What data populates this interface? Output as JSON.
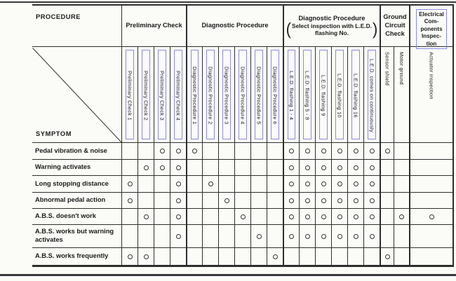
{
  "page": {
    "title_procedure": "PROCEDURE",
    "title_symptom": "SYMPTOM"
  },
  "groups": {
    "preliminary": {
      "label": "Preliminary Check"
    },
    "diagnostic": {
      "label": "Diagnostic Procedure"
    },
    "led": {
      "label": "Diagnostic Procedure",
      "paren_line1": "Select inspection with L.E.D.",
      "paren_line2": "flashing No.",
      "paren_open": "(",
      "paren_close": ")"
    },
    "ground": {
      "line1": "Ground",
      "line2": "Circuit",
      "line3": "Check"
    },
    "electrical": {
      "line1": "Electrical",
      "line2": "Com-",
      "line3": "ponents",
      "line4": "Inspec-",
      "line5": "tion"
    }
  },
  "columns": [
    {
      "label": "Preliminary Check 1",
      "linked": true
    },
    {
      "label": "Preliminary Check 2",
      "linked": true
    },
    {
      "label": "Preliminary Check 3",
      "linked": true
    },
    {
      "label": "Preliminary Check 4",
      "linked": true
    },
    {
      "label": "Diagnostic Procedure 1",
      "linked": true
    },
    {
      "label": "Diagnostic Procedure 2",
      "linked": true
    },
    {
      "label": "Diagnostic Procedure 3",
      "linked": true
    },
    {
      "label": "Diagnostic Procedure 4",
      "linked": true
    },
    {
      "label": "Diagnostic Procedure 5",
      "linked": true
    },
    {
      "label": "Diagnostic Procedure 6",
      "linked": true
    },
    {
      "label": "L.E.D. flashing 1 - 4",
      "linked": true
    },
    {
      "label": "L.E.D. flashing 5 - 8",
      "linked": true
    },
    {
      "label": "L.E.D. flashing 9",
      "linked": true
    },
    {
      "label": "L.E.D. flashing 10",
      "linked": true
    },
    {
      "label": "L.E.D. flashing 16",
      "linked": true
    },
    {
      "label": "L.E.D. comes on continuously",
      "linked": true
    },
    {
      "label": "Sensor shield",
      "linked": false
    },
    {
      "label": "Motor ground",
      "linked": false
    },
    {
      "label": "Actuator inspection",
      "linked": false
    }
  ],
  "rows": [
    {
      "label": "Pedal vibration & noise",
      "marks": [
        3,
        4,
        5,
        11,
        12,
        13,
        14,
        15,
        16,
        17
      ]
    },
    {
      "label": "Warning activates",
      "marks": [
        2,
        3,
        4,
        11,
        12,
        13,
        14,
        15,
        16
      ]
    },
    {
      "label": "Long stopping distance",
      "marks": [
        1,
        4,
        6,
        11,
        12,
        13,
        14,
        15,
        16
      ]
    },
    {
      "label": "Abnormal pedal action",
      "marks": [
        1,
        4,
        7,
        11,
        12,
        13,
        14,
        15,
        16
      ]
    },
    {
      "label": "A.B.S. doesn't work",
      "marks": [
        2,
        4,
        8,
        11,
        12,
        13,
        14,
        15,
        16,
        18,
        19
      ]
    },
    {
      "label": "A.B.S. works but warning activates",
      "marks": [
        4,
        9,
        11,
        12,
        13,
        14,
        15,
        16
      ]
    },
    {
      "label": "A.B.S. works frequently",
      "marks": [
        1,
        2,
        10,
        17
      ]
    }
  ],
  "mark": {
    "symbol": "O",
    "meaning": "applicable"
  },
  "colors": {
    "link_blue": "#8a8ae0",
    "grid_line": "#2e2e2e",
    "ink": "#1a1a1a",
    "paper": "#fbfbf8"
  }
}
